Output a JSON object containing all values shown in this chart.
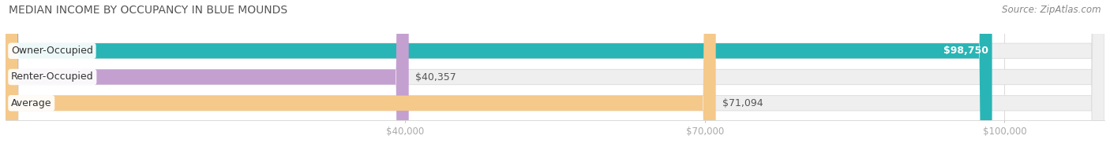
{
  "title": "MEDIAN INCOME BY OCCUPANCY IN BLUE MOUNDS",
  "source": "Source: ZipAtlas.com",
  "categories": [
    "Owner-Occupied",
    "Renter-Occupied",
    "Average"
  ],
  "values": [
    98750,
    40357,
    71094
  ],
  "bar_colors": [
    "#29b5b5",
    "#c4a0d0",
    "#f5c98a"
  ],
  "bar_bg_color": "#efefef",
  "bar_border_color": "#dedede",
  "label_values": [
    "$98,750",
    "$40,357",
    "$71,094"
  ],
  "xlim": [
    0,
    110000
  ],
  "xticks": [
    40000,
    70000,
    100000
  ],
  "xtick_labels": [
    "$40,000",
    "$70,000",
    "$100,000"
  ],
  "figsize": [
    14.06,
    1.96
  ],
  "dpi": 100,
  "title_fontsize": 10,
  "label_fontsize": 9,
  "value_fontsize": 9,
  "source_fontsize": 8.5,
  "bar_height": 0.58,
  "value_inside_threshold": 95000
}
